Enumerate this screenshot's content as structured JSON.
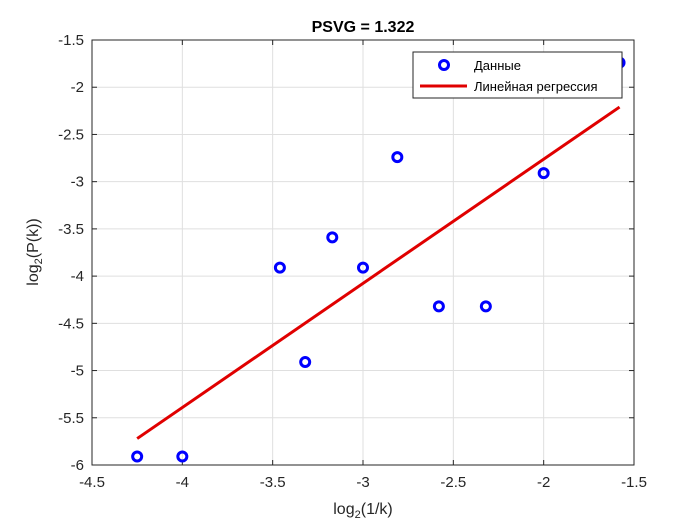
{
  "chart_data": {
    "type": "scatter",
    "title": "PSVG = 1.322",
    "xlabel": {
      "base": "log",
      "sub": "2",
      "rest": "(1/k)"
    },
    "ylabel": {
      "base": "log",
      "sub": "2",
      "rest": "(P(k))"
    },
    "xlim": [
      -4.5,
      -1.5
    ],
    "ylim": [
      -6,
      -1.5
    ],
    "xticks": [
      -4.5,
      -4,
      -3.5,
      -3,
      -2.5,
      -2,
      -1.5
    ],
    "xtick_labels": [
      "-4.5",
      "-4",
      "-3.5",
      "-3",
      "-2.5",
      "-2",
      "-1.5"
    ],
    "yticks": [
      -6,
      -5.5,
      -5,
      -4.5,
      -4,
      -3.5,
      -3,
      -2.5,
      -2,
      -1.5
    ],
    "ytick_labels": [
      "-6",
      "-5.5",
      "-5",
      "-4.5",
      "-4",
      "-3.5",
      "-3",
      "-2.5",
      "-2",
      "-1.5"
    ],
    "grid": true,
    "legend_position": "top-right",
    "series": [
      {
        "name": "Данные",
        "kind": "markers",
        "color": "#0000ff",
        "x": [
          -4.25,
          -4.0,
          -3.46,
          -3.32,
          -3.17,
          -3.0,
          -2.81,
          -2.58,
          -2.32,
          -2.0,
          -1.58
        ],
        "y": [
          -5.91,
          -5.91,
          -3.91,
          -4.91,
          -3.59,
          -3.91,
          -2.74,
          -4.32,
          -4.32,
          -2.91,
          -1.74
        ]
      },
      {
        "name": "Линейная регрессия",
        "kind": "line",
        "color": "#e00000",
        "x": [
          -4.25,
          -1.58
        ],
        "y": [
          -5.72,
          -2.21
        ]
      }
    ]
  }
}
